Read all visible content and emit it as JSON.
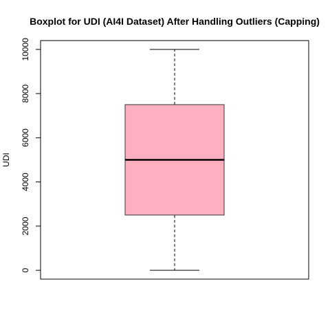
{
  "chart_data": {
    "type": "boxplot",
    "title": "Boxplot for UDI (AI4I Dataset) After Handling Outliers (Capping)",
    "ylabel": "UDI",
    "xlabel": "",
    "ylim": [
      -400,
      10400
    ],
    "yticks": [
      0,
      2000,
      4000,
      6000,
      8000,
      10000
    ],
    "ytick_labels": [
      "0",
      "2000",
      "4000",
      "6000",
      "8000",
      "10000"
    ],
    "grid": false,
    "stats": {
      "min": 1,
      "q1": 2500,
      "median": 5000,
      "q3": 7500,
      "max": 10000
    },
    "colors": {
      "box_fill": "#FFB0C0",
      "box_stroke": "#333333",
      "median": "#000000"
    }
  }
}
